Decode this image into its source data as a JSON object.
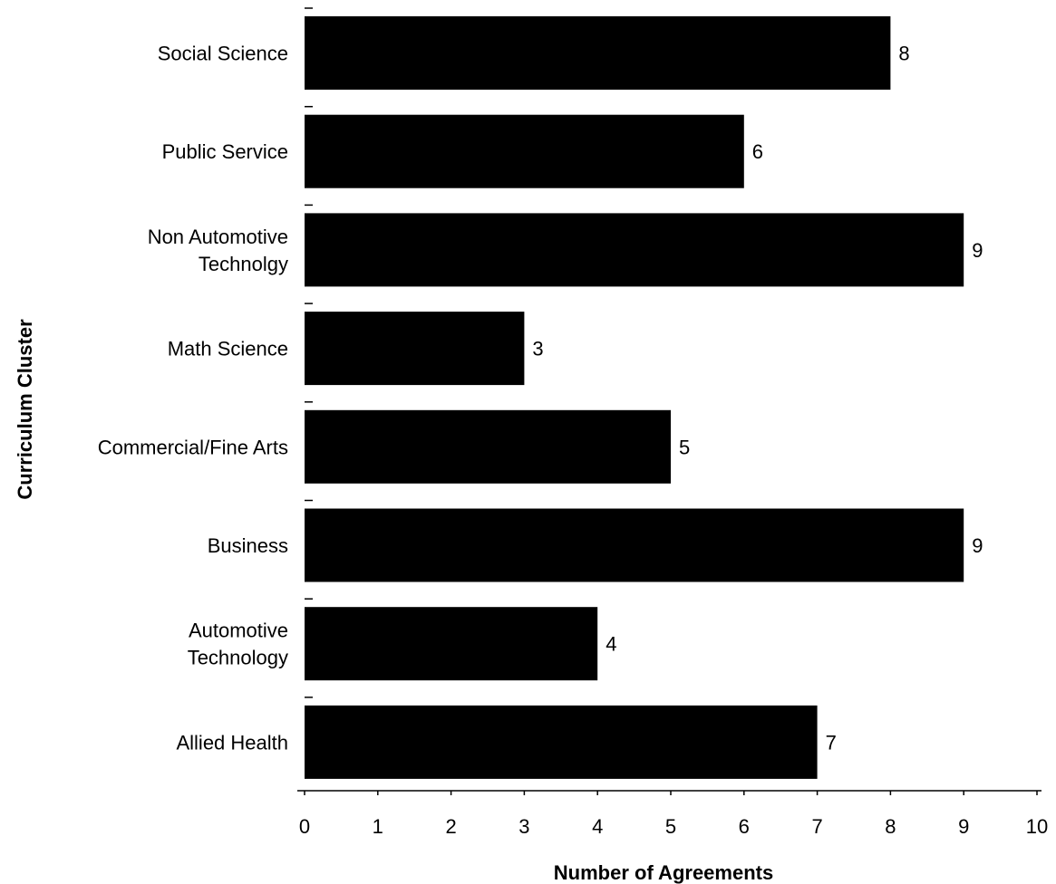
{
  "chart_data": {
    "type": "bar",
    "orientation": "horizontal",
    "categories": [
      [
        "Social Science"
      ],
      [
        "Public Service"
      ],
      [
        "Non Automotive",
        "Technolgy"
      ],
      [
        "Math Science"
      ],
      [
        "Commercial/Fine Arts"
      ],
      [
        "Business"
      ],
      [
        "Automotive",
        "Technology"
      ],
      [
        "Allied Health"
      ]
    ],
    "values": [
      8,
      6,
      9,
      3,
      5,
      9,
      4,
      7
    ],
    "title": "",
    "xlabel": "Number of Agreements",
    "ylabel": "Curriculum Cluster",
    "xlim": [
      0,
      10
    ],
    "xticks": [
      0,
      1,
      2,
      3,
      4,
      5,
      6,
      7,
      8,
      9,
      10
    ],
    "data_labels": true,
    "grid": false,
    "bar_color": "#000000"
  }
}
